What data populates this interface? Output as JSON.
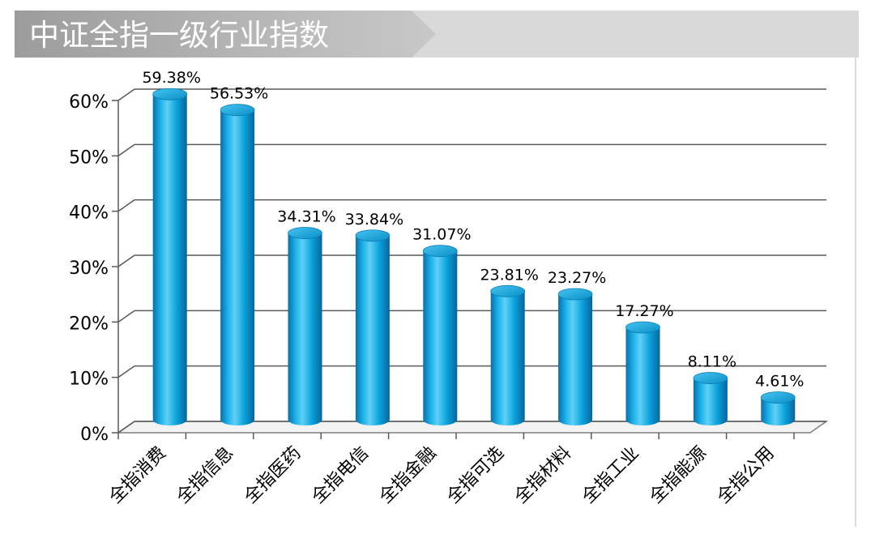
{
  "header": {
    "title": "中证全指一级行业指数"
  },
  "colors": {
    "bar_main": "#0aa2dc",
    "bar_dark": "#0a6fa8",
    "bar_light": "#7fd8f6",
    "banner_dark": "#a6a6a6",
    "banner_light": "#d9d9d9",
    "grid": "#595959"
  },
  "chart_data": {
    "type": "bar",
    "title": "中证全指一级行业指数",
    "categories": [
      "全指消费",
      "全指信息",
      "全指医药",
      "全指电信",
      "全指金融",
      "全指可选",
      "全指材料",
      "全指工业",
      "全指能源",
      "全指公用"
    ],
    "values": [
      59.38,
      56.53,
      34.31,
      33.84,
      31.07,
      23.81,
      23.27,
      17.27,
      8.11,
      4.61
    ],
    "data_labels": [
      "59.38%",
      "56.53%",
      "34.31%",
      "33.84%",
      "31.07%",
      "23.81%",
      "23.27%",
      "17.27%",
      "8.11%",
      "4.61%"
    ],
    "ylim": [
      0,
      60
    ],
    "yticks": [
      0,
      10,
      20,
      30,
      40,
      50,
      60
    ],
    "ytick_labels": [
      "0%",
      "10%",
      "20%",
      "30%",
      "40%",
      "50%",
      "60%"
    ],
    "grid": true,
    "legend": "none",
    "style": "3d-cylinder"
  }
}
